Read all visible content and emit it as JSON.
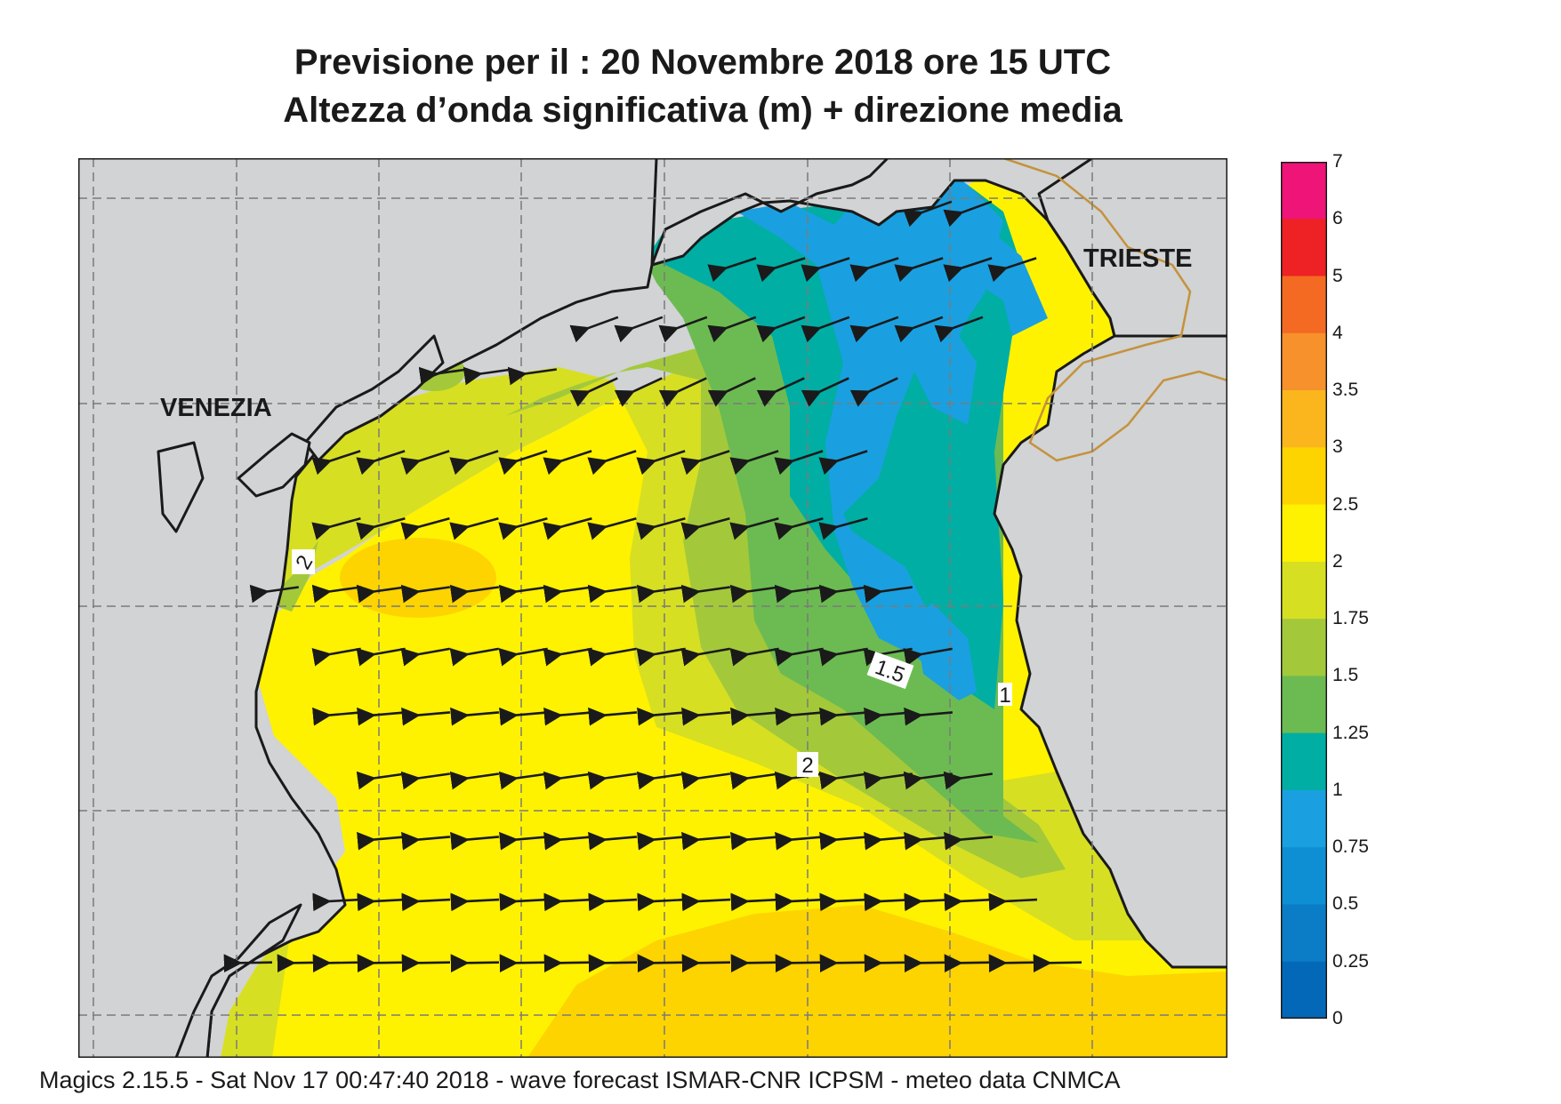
{
  "title_line1": "Previsione per il  :  20 Novembre  2018   ore 15 UTC",
  "title_line2": "Altezza d’onda significativa (m) + direzione media",
  "cities": {
    "venezia": "VENEZIA",
    "trieste": "TRIESTE"
  },
  "contour_labels": [
    "2",
    "1.5",
    "1",
    "2"
  ],
  "colorbar": {
    "levels": [
      "7",
      "6",
      "5",
      "4",
      "3.5",
      "3",
      "2.5",
      "2",
      "1.75",
      "1.5",
      "1.25",
      "1",
      "0.75",
      "0.5",
      "0.25",
      "0"
    ],
    "colors": [
      "#ef1477",
      "#ee2124",
      "#f46a22",
      "#f7912b",
      "#fbb61e",
      "#fdd400",
      "#fff200",
      "#d7df23",
      "#a3c93a",
      "#6cbb52",
      "#00aea4",
      "#1aa0e0",
      "#0e8fd3",
      "#0a7dc6",
      "#0468b8"
    ]
  },
  "colors": {
    "land": "#d1d3d4",
    "coast": "#1a1a1a",
    "border": "#c5923d",
    "arrow": "#1a1a1a"
  },
  "footer": "Magics 2.15.5 - Sat Nov 17 00:47:40 2018 - wave forecast  ISMAR-CNR  ICPSM - meteo data   CNMCA"
}
